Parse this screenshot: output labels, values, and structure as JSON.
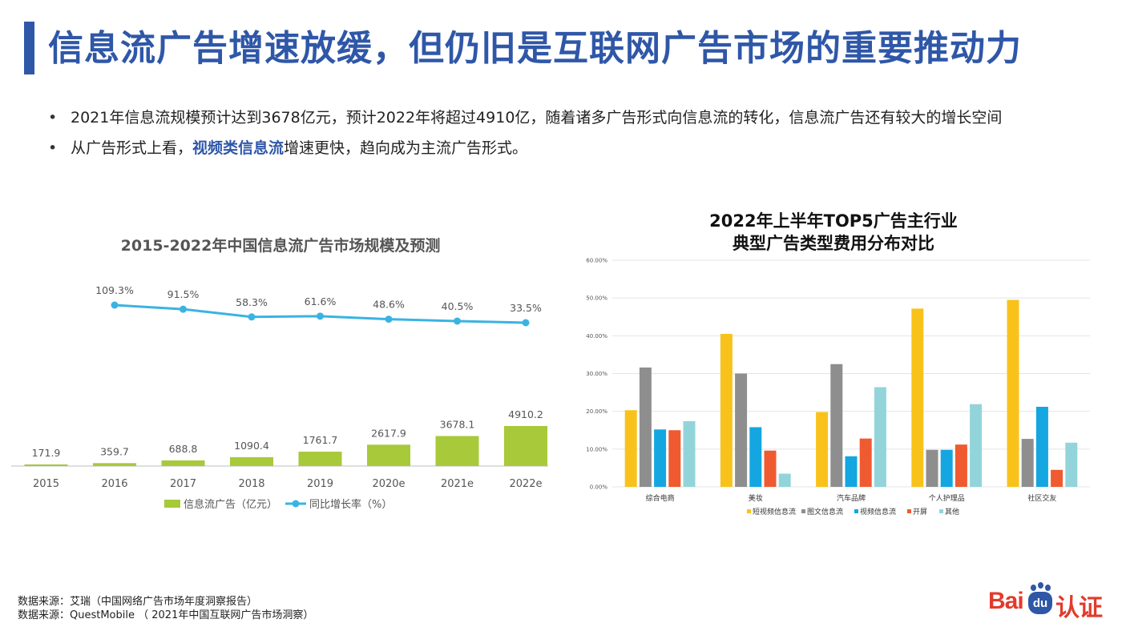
{
  "title": "信息流广告增速放缓，但仍旧是互联网广告市场的重要推动力",
  "bullets": [
    {
      "text": "2021年信息流规模预计达到3678亿元，预计2022年将超过4910亿，随着诸多广告形式向信息流的转化，信息流广告还有较大的增长空间"
    },
    {
      "prefix": "从广告形式上看，",
      "highlight": "视频类信息流",
      "suffix": "增速更快，趋向成为主流广告形式。"
    }
  ],
  "sources": [
    "数据来源：艾瑞（中国网络广告市场年度洞察报告）",
    "数据来源：QuestMobile （ 2021年中国互联网广告市场洞察）"
  ],
  "logo": {
    "text_left": "Bai",
    "text_du": "du",
    "text_right": "认证"
  },
  "colors": {
    "title": "#2f57a8",
    "bar_green": "#a7c93a",
    "line_blue": "#3ab3e3"
  },
  "chart_data": [
    {
      "type": "bar",
      "title": "2015-2022年中国信息流广告市场规模及预测",
      "categories": [
        "2015",
        "2016",
        "2017",
        "2018",
        "2019",
        "2020e",
        "2021e",
        "2022e"
      ],
      "series": [
        {
          "name": "信息流广告（亿元）",
          "type": "bar",
          "values": [
            171.9,
            359.7,
            688.8,
            1090.4,
            1761.7,
            2617.9,
            3678.1,
            4910.2
          ]
        },
        {
          "name": "同比增长率（%）",
          "type": "line",
          "values": [
            null,
            109.3,
            91.5,
            58.3,
            61.6,
            48.6,
            40.5,
            33.5
          ]
        }
      ],
      "value_labels": [
        "171.9",
        "359.7",
        "688.8",
        "1090.4",
        "1761.7",
        "2617.9",
        "3678.1",
        "4910.2"
      ],
      "rate_labels": [
        "",
        "109.3%",
        "91.5%",
        "58.3%",
        "61.6%",
        "48.6%",
        "40.5%",
        "33.5%"
      ],
      "legend": [
        "信息流广告（亿元）",
        "同比增长率（%）"
      ],
      "legend_position": "bottom"
    },
    {
      "type": "bar",
      "title_lines": [
        "2022年上半年TOP5广告主行业",
        "典型广告类型费用分布对比"
      ],
      "categories": [
        "综合电商",
        "美妆",
        "汽车品牌",
        "个人护理品",
        "社区交友"
      ],
      "series": [
        {
          "name": "短视频信息流",
          "color": "#f9c21b",
          "values": [
            20.3,
            40.5,
            19.8,
            47.2,
            49.5
          ]
        },
        {
          "name": "图文信息流",
          "color": "#8e8e8e",
          "values": [
            31.6,
            30.0,
            32.5,
            9.8,
            12.7
          ]
        },
        {
          "name": "视频信息流",
          "color": "#14a6e0",
          "values": [
            15.2,
            15.8,
            8.1,
            9.8,
            21.2
          ]
        },
        {
          "name": "开屏",
          "color": "#ef5a31",
          "values": [
            15.0,
            9.6,
            12.8,
            11.2,
            4.5
          ]
        },
        {
          "name": "其他",
          "color": "#93d4db",
          "values": [
            17.4,
            3.5,
            26.4,
            21.9,
            11.7
          ]
        }
      ],
      "ylim": [
        0,
        60
      ],
      "yticks": [
        "0.00%",
        "10.00%",
        "20.00%",
        "30.00%",
        "40.00%",
        "50.00%",
        "60.00%"
      ],
      "grid": true,
      "legend_position": "bottom"
    }
  ]
}
